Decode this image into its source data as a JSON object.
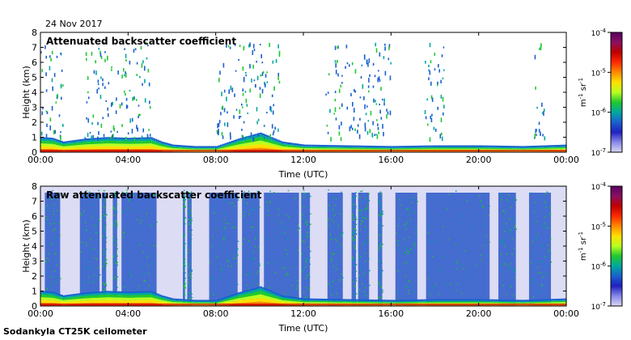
{
  "figure": {
    "date": "24 Nov 2017",
    "instrument": "Sodankyla CT25K ceilometer"
  },
  "colorbar": {
    "unit_main": "m",
    "unit_exp1": "-1",
    "unit_sr": "sr",
    "unit_exp2": "-1",
    "ticks": [
      {
        "base": "10",
        "exp": "-4"
      },
      {
        "base": "10",
        "exp": "-5"
      },
      {
        "base": "10",
        "exp": "-6"
      },
      {
        "base": "10",
        "exp": "-7"
      }
    ],
    "colors": [
      "#5a0063",
      "#8a1060",
      "#c00000",
      "#ff2a00",
      "#ff8a00",
      "#ffe000",
      "#b8ff20",
      "#20c830",
      "#00a8a0",
      "#1a60d0",
      "#2020c0",
      "#8888e8",
      "#d8d8f4"
    ]
  },
  "chart_data": [
    {
      "type": "heatmap",
      "title": "Attenuated backscatter coefficient",
      "xlabel": "Time (UTC)",
      "ylabel": "Height (km)",
      "x_ticks": [
        "00:00",
        "04:00",
        "08:00",
        "12:00",
        "16:00",
        "20:00",
        "00:00"
      ],
      "y_ticks": [
        "0",
        "1",
        "2",
        "3",
        "4",
        "5",
        "6",
        "7",
        "8"
      ],
      "xlim_hours": [
        0,
        24
      ],
      "ylim_km": [
        0,
        8
      ],
      "color_scale": "log",
      "color_range": [
        1e-07,
        0.0001
      ],
      "boundary_layer_top_km": [
        [
          0,
          0.9
        ],
        [
          0.5,
          0.85
        ],
        [
          1,
          0.6
        ],
        [
          2,
          0.8
        ],
        [
          3,
          0.9
        ],
        [
          4,
          0.85
        ],
        [
          5,
          0.9
        ],
        [
          5.5,
          0.6
        ],
        [
          6,
          0.4
        ],
        [
          7,
          0.3
        ],
        [
          8,
          0.3
        ],
        [
          9,
          0.8
        ],
        [
          10,
          1.2
        ],
        [
          11,
          0.6
        ],
        [
          12,
          0.4
        ],
        [
          14,
          0.35
        ],
        [
          16,
          0.3
        ],
        [
          18,
          0.35
        ],
        [
          20,
          0.35
        ],
        [
          22,
          0.3
        ],
        [
          24,
          0.4
        ]
      ],
      "cloud_periods_hours": [
        [
          0,
          1
        ],
        [
          2,
          5
        ],
        [
          8,
          11
        ],
        [
          13,
          16
        ],
        [
          17.5,
          18.5
        ],
        [
          22.5,
          23
        ]
      ]
    },
    {
      "type": "heatmap",
      "title": "Raw attenuated backscatter coefficient",
      "xlabel": "Time (UTC)",
      "ylabel": "Height (km)",
      "x_ticks": [
        "00:00",
        "04:00",
        "08:00",
        "12:00",
        "16:00",
        "20:00",
        "00:00"
      ],
      "y_ticks": [
        "0",
        "1",
        "2",
        "3",
        "4",
        "5",
        "6",
        "7",
        "8"
      ],
      "xlim_hours": [
        0,
        24
      ],
      "ylim_km": [
        0,
        8
      ],
      "color_scale": "log",
      "color_range": [
        1e-07,
        0.0001
      ],
      "noise_columns_hours": [
        [
          0.2,
          0.9
        ],
        [
          1.8,
          2.7
        ],
        [
          2.8,
          3.0
        ],
        [
          3.3,
          3.5
        ],
        [
          3.7,
          5.3
        ],
        [
          6.5,
          6.6
        ],
        [
          6.7,
          6.9
        ],
        [
          7.7,
          9.0
        ],
        [
          9.2,
          10.0
        ],
        [
          10.2,
          11.8
        ],
        [
          11.9,
          12.3
        ],
        [
          13.1,
          13.8
        ],
        [
          14.2,
          14.4
        ],
        [
          14.5,
          15.0
        ],
        [
          15.4,
          15.6
        ],
        [
          16.2,
          17.2
        ],
        [
          17.6,
          20.5
        ],
        [
          20.9,
          21.7
        ],
        [
          22.3,
          23.3
        ]
      ]
    }
  ]
}
